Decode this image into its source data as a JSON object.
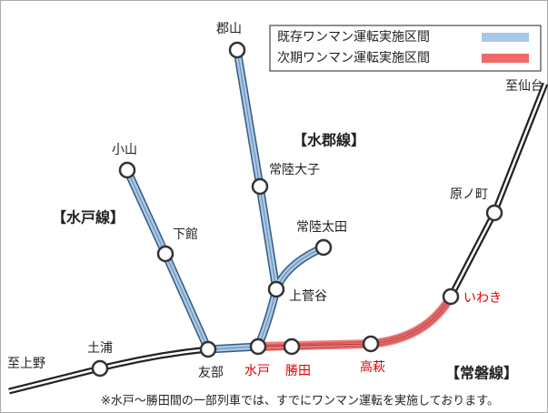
{
  "legend": [
    "既存ワンマン運転実施区間",
    "次期ワンマン運転実施区間"
  ],
  "stations": {
    "koriyama": "郡山",
    "hitachidaigo": "常陸大子",
    "hitachiota": "常陸太田",
    "kamisugaya": "上菅谷",
    "oyama": "小山",
    "shimodate": "下館",
    "tomobe": "友部",
    "mito": "水戸",
    "katsuta": "勝田",
    "takahagi": "高萩",
    "iwaki": "いわき",
    "haranomachi": "原ノ町",
    "tsuchiura": "土浦"
  },
  "destinations": {
    "ueno": "至上野",
    "sendai": "至仙台"
  },
  "lines": {
    "suigun": "【水郡線】",
    "mito": "【水戸線】",
    "joban": "【常磐線】"
  },
  "note": "※水戸～勝田間の一部列車では、すでにワンマン運転を実施しております。"
}
